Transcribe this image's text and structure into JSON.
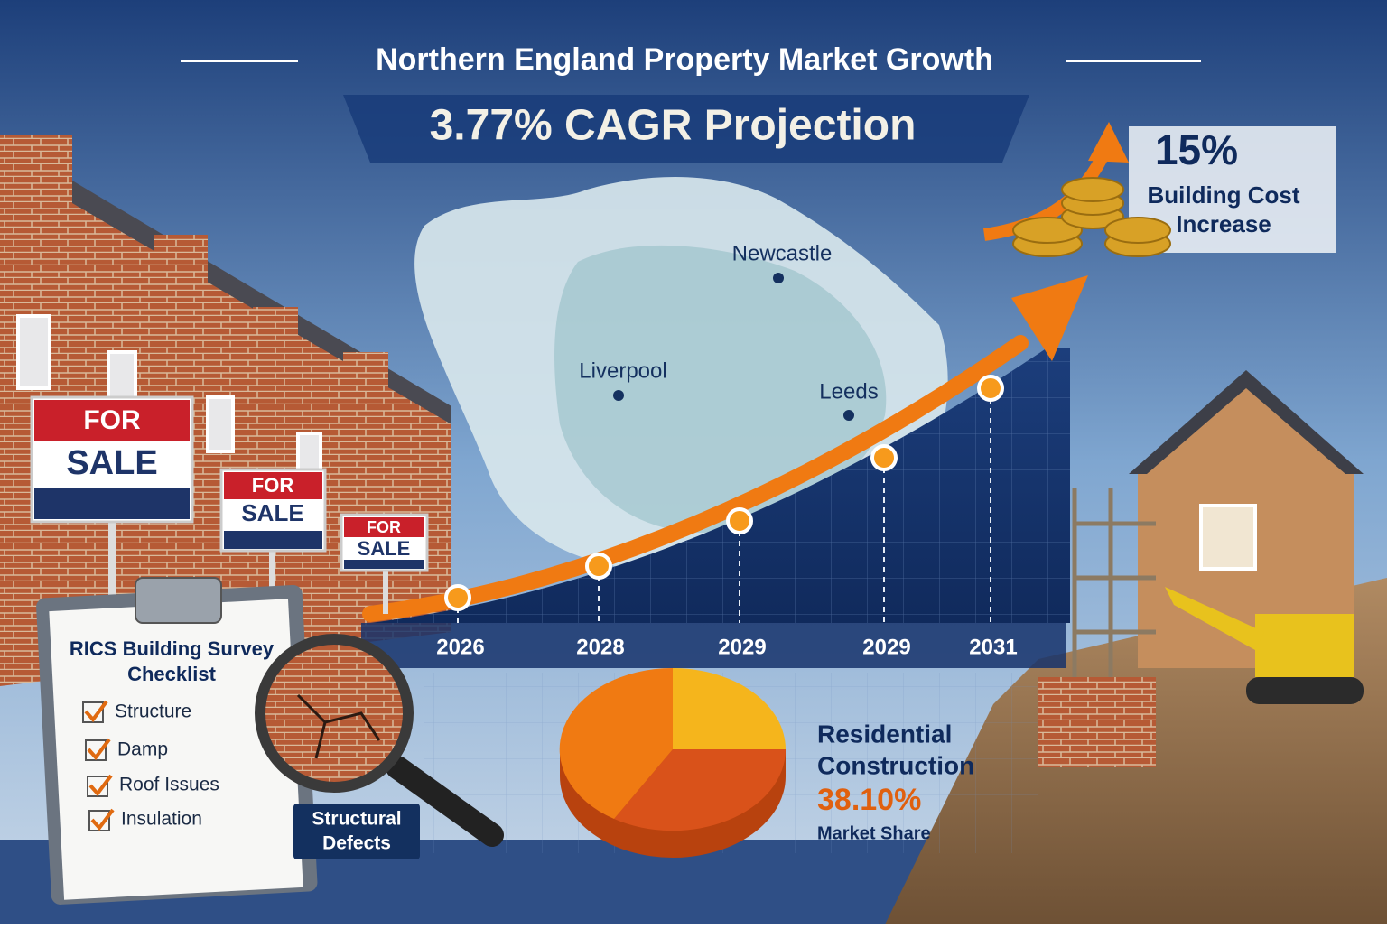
{
  "header": {
    "title": "Northern England Property Market Growth",
    "subtitle": "3.77% CAGR Projection"
  },
  "cost_callout": {
    "value": "15%",
    "label_lines": [
      "Building Cost",
      "Increase"
    ]
  },
  "map": {
    "cities": [
      "Newcastle",
      "Liverpool",
      "Leeds"
    ]
  },
  "timeline": {
    "years": [
      "2026",
      "2028",
      "2029",
      "2029",
      "2031"
    ]
  },
  "signs": [
    {
      "top": "FOR",
      "bottom": "SALE"
    },
    {
      "top": "FOR",
      "bottom": "SALE"
    },
    {
      "top": "FOR",
      "bottom": "SALE"
    }
  ],
  "checklist": {
    "title_lines": [
      "RICS Building Survey",
      "Checklist"
    ],
    "items": [
      "Structure",
      "Damp",
      "Roof Issues",
      "Insulation"
    ]
  },
  "magnifier_label_lines": [
    "Structural",
    "Defects"
  ],
  "market_share": {
    "label_lines": [
      "Residential",
      "Construction"
    ],
    "value": "38.10%",
    "caption": "Market Share"
  }
}
